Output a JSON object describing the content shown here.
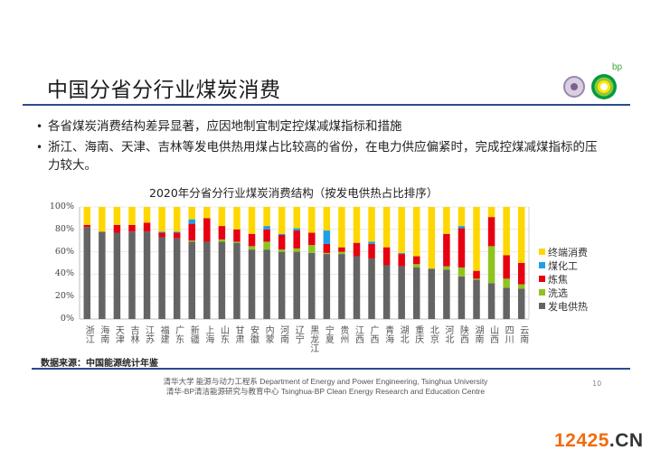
{
  "slide": {
    "title": "中国分省分行业煤炭消费",
    "bullets": [
      "各省煤炭消费结构差异显著，应因地制宜制定控煤减煤指标和措施",
      "浙江、海南、天津、吉林等发电供热用煤占比较高的省份，在电力供应偏紧时，完成控煤减煤指标的压力较大。"
    ],
    "bullet_glyph": "•",
    "logo_bp_text": "bp",
    "source": "数据来源：中国能源统计年鉴",
    "footer_line1": "清华大学 能源与动力工程系 Department of Energy and Power Engineering, Tsinghua University",
    "footer_line2": "清华-BP清洁能源研究与教育中心 Tsinghua-BP  Clean Energy Research and Education Centre",
    "page_number": "10",
    "watermark_num": "12425",
    "watermark_domain": ".CN"
  },
  "chart_data": {
    "type": "bar",
    "stacked": true,
    "percent": true,
    "title": "2020年分省分行业煤炭消费结构（按发电供热占比排序）",
    "xlabel": "",
    "ylabel": "",
    "ylim": [
      0,
      100
    ],
    "yticks": [
      "0%",
      "20%",
      "40%",
      "60%",
      "80%",
      "100%"
    ],
    "grid": true,
    "legend_position": "right",
    "categories": [
      "浙江",
      "海南",
      "天津",
      "吉林",
      "江苏",
      "福建",
      "广东",
      "新疆",
      "上海",
      "山东",
      "甘肃",
      "安徽",
      "内蒙",
      "河南",
      "辽宁",
      "黑龙江",
      "宁夏",
      "贵州",
      "江西",
      "广西",
      "青海",
      "湖北",
      "重庆",
      "北京",
      "河北",
      "陕西",
      "湖南",
      "山西",
      "四川",
      "云南"
    ],
    "series": [
      {
        "name": "发电供热",
        "color": "#646464",
        "values": [
          82,
          78,
          77,
          78,
          78,
          73,
          72,
          69,
          69,
          69,
          68,
          62,
          62,
          60,
          60,
          59,
          58,
          58,
          56,
          54,
          48,
          47,
          46,
          45,
          44,
          38,
          35,
          32,
          28,
          27
        ]
      },
      {
        "name": "洗选",
        "color": "#8fc31f",
        "values": [
          0,
          0,
          0,
          0,
          0,
          0,
          0,
          1,
          0,
          2,
          1,
          3,
          7,
          2,
          3,
          7,
          1,
          2,
          0,
          0,
          0,
          0,
          3,
          0,
          3,
          8,
          1,
          33,
          8,
          4
        ]
      },
      {
        "name": "炼焦",
        "color": "#e60012",
        "values": [
          2,
          0,
          7,
          6,
          8,
          4,
          5,
          15,
          21,
          12,
          11,
          11,
          11,
          13,
          16,
          11,
          8,
          4,
          12,
          13,
          16,
          11,
          7,
          0,
          29,
          35,
          7,
          26,
          21,
          19
        ]
      },
      {
        "name": "煤化工",
        "color": "#1ea0e6",
        "values": [
          0,
          0,
          0,
          0,
          0,
          1,
          1,
          4,
          0,
          0,
          0,
          0,
          3,
          1,
          2,
          0,
          12,
          0,
          0,
          2,
          0,
          1,
          0,
          0,
          0,
          2,
          0,
          0,
          0,
          0
        ]
      },
      {
        "name": "终端消费",
        "color": "#ffd700",
        "values": [
          16,
          22,
          16,
          16,
          14,
          22,
          22,
          11,
          10,
          17,
          20,
          24,
          17,
          24,
          19,
          23,
          21,
          36,
          32,
          31,
          36,
          41,
          44,
          55,
          24,
          17,
          57,
          9,
          43,
          50
        ]
      }
    ],
    "legend_order": [
      "终端消费",
      "煤化工",
      "炼焦",
      "洗选",
      "发电供热"
    ]
  }
}
